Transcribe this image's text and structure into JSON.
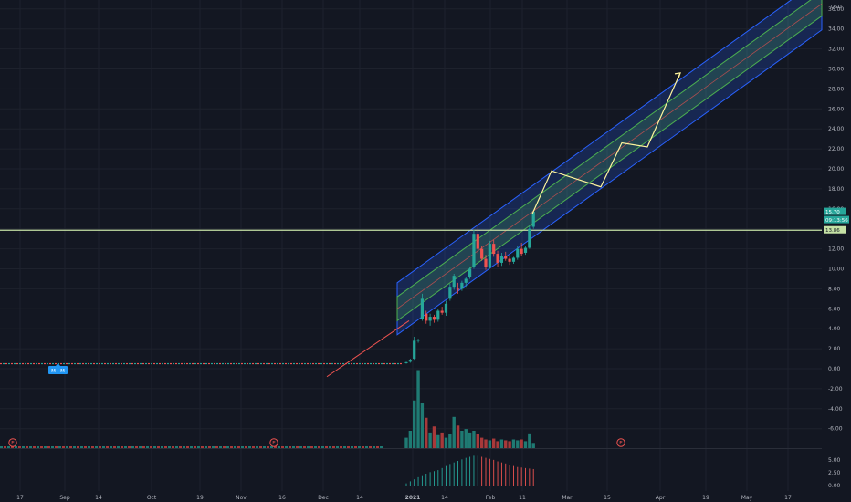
{
  "colors": {
    "background": "#131722",
    "grid": "#1e222d",
    "up": "#26a69a",
    "down": "#ef5350",
    "up_volume": "#1f7a73",
    "down_volume": "#a8393a",
    "channel_outer": "#2962ff",
    "channel_inner": "#4caf50",
    "horizontal_line": "#c5e1a5",
    "projection": "#fff59d",
    "trend_line": "#ef5350",
    "axis_text": "#b2b5be",
    "last_price_badge": "#26a69a",
    "level_badge": "#c5e1a5"
  },
  "price_axis": {
    "currency": "USD",
    "top_label": "36.00",
    "ticks": [
      "34.00",
      "32.00",
      "30.00",
      "28.00",
      "26.00",
      "24.00",
      "22.00",
      "20.00",
      "18.00",
      "16.00",
      "12.00",
      "10.00",
      "8.00",
      "6.00",
      "4.00",
      "2.00",
      "0.00",
      "-2.00",
      "-4.00",
      "-6.00"
    ],
    "last_price": "15.70",
    "second_badge": "09:13:56",
    "level": "13.86"
  },
  "oscillator_axis": {
    "ticks": [
      "5.00",
      "2.50",
      "0.00"
    ]
  },
  "time_axis": {
    "labels": [
      "17",
      "Sep",
      "14",
      "Oct",
      "19",
      "Nov",
      "16",
      "Dec",
      "14",
      "2021",
      "14",
      "Feb",
      "11",
      "Mar",
      "15",
      "Apr",
      "19",
      "May",
      "17"
    ]
  },
  "markers": {
    "earnings": [
      "E",
      "E",
      "E"
    ],
    "split": [
      "M",
      "M"
    ]
  },
  "chart_data": {
    "type": "candlestick",
    "title": "",
    "y_unit": "USD",
    "ylim": [
      -7,
      37
    ],
    "grid": true,
    "pre_period_price": 0.5,
    "candles": [
      {
        "o": 0.6,
        "h": 0.7,
        "l": 0.5,
        "c": 0.65
      },
      {
        "o": 0.7,
        "h": 1.0,
        "l": 0.6,
        "c": 0.9
      },
      {
        "o": 1.0,
        "h": 3.2,
        "l": 0.9,
        "c": 2.8
      },
      {
        "o": 2.8,
        "h": 3.0,
        "l": 2.6,
        "c": 2.9
      },
      {
        "o": 5.0,
        "h": 7.5,
        "l": 4.8,
        "c": 7.0
      },
      {
        "o": 5.5,
        "h": 5.8,
        "l": 4.5,
        "c": 4.8
      },
      {
        "o": 4.8,
        "h": 5.5,
        "l": 4.3,
        "c": 5.2
      },
      {
        "o": 5.2,
        "h": 5.4,
        "l": 4.6,
        "c": 4.9
      },
      {
        "o": 4.9,
        "h": 6.0,
        "l": 4.7,
        "c": 5.8
      },
      {
        "o": 5.8,
        "h": 6.2,
        "l": 5.4,
        "c": 5.6
      },
      {
        "o": 5.6,
        "h": 6.8,
        "l": 5.3,
        "c": 6.5
      },
      {
        "o": 7.0,
        "h": 8.5,
        "l": 6.8,
        "c": 8.2
      },
      {
        "o": 8.2,
        "h": 9.5,
        "l": 7.9,
        "c": 9.3
      },
      {
        "o": 8.0,
        "h": 8.6,
        "l": 7.5,
        "c": 7.9
      },
      {
        "o": 8.0,
        "h": 8.8,
        "l": 7.8,
        "c": 8.6
      },
      {
        "o": 8.6,
        "h": 9.2,
        "l": 8.2,
        "c": 9.0
      },
      {
        "o": 9.2,
        "h": 10.2,
        "l": 9.0,
        "c": 10.0
      },
      {
        "o": 10.2,
        "h": 13.9,
        "l": 10.0,
        "c": 13.5
      },
      {
        "o": 13.5,
        "h": 14.5,
        "l": 11.5,
        "c": 12.0
      },
      {
        "o": 12.0,
        "h": 12.3,
        "l": 10.8,
        "c": 11.0
      },
      {
        "o": 11.0,
        "h": 11.4,
        "l": 9.9,
        "c": 10.2
      },
      {
        "o": 10.2,
        "h": 12.8,
        "l": 10.0,
        "c": 12.5
      },
      {
        "o": 12.5,
        "h": 12.9,
        "l": 11.2,
        "c": 11.5
      },
      {
        "o": 11.5,
        "h": 11.8,
        "l": 10.2,
        "c": 10.6
      },
      {
        "o": 10.6,
        "h": 11.6,
        "l": 10.3,
        "c": 11.3
      },
      {
        "o": 11.3,
        "h": 11.7,
        "l": 10.8,
        "c": 11.0
      },
      {
        "o": 11.0,
        "h": 11.3,
        "l": 10.4,
        "c": 10.7
      },
      {
        "o": 10.7,
        "h": 11.2,
        "l": 10.5,
        "c": 11.1
      },
      {
        "o": 11.1,
        "h": 12.3,
        "l": 10.9,
        "c": 12.0
      },
      {
        "o": 12.0,
        "h": 12.6,
        "l": 11.3,
        "c": 11.5
      },
      {
        "o": 11.6,
        "h": 12.3,
        "l": 11.4,
        "c": 12.1
      },
      {
        "o": 12.1,
        "h": 14.3,
        "l": 12.0,
        "c": 14.0
      },
      {
        "o": 14.2,
        "h": 15.9,
        "l": 14.0,
        "c": 15.7
      }
    ],
    "volume": [
      0.12,
      0.2,
      0.55,
      0.9,
      0.52,
      0.35,
      0.18,
      0.25,
      0.15,
      0.18,
      0.12,
      0.16,
      0.36,
      0.26,
      0.2,
      0.22,
      0.18,
      0.2,
      0.16,
      0.12,
      0.1,
      0.09,
      0.11,
      0.08,
      0.1,
      0.09,
      0.08,
      0.1,
      0.09,
      0.1,
      0.08,
      0.17,
      0.06
    ],
    "oscillator": [
      0.6,
      1.0,
      1.4,
      1.8,
      2.2,
      2.5,
      2.8,
      3.0,
      3.2,
      3.6,
      4.0,
      4.4,
      4.7,
      5.0,
      5.3,
      5.6,
      5.8,
      6.0,
      6.0,
      5.8,
      5.6,
      5.4,
      5.2,
      4.9,
      4.7,
      4.5,
      4.2,
      4.0,
      3.8,
      3.7,
      3.6,
      3.5,
      3.4
    ],
    "channel": {
      "start_price": 6.0,
      "end_price": 36.5,
      "outer_half_width": 2.6,
      "inner_half_width": 1.2
    },
    "trend_line": {
      "start_price": -0.8,
      "end_price": 4.8
    },
    "horizontal_level": 13.86,
    "projection": [
      15.5,
      19.8,
      18.2,
      22.6,
      22.2,
      29.6
    ]
  }
}
